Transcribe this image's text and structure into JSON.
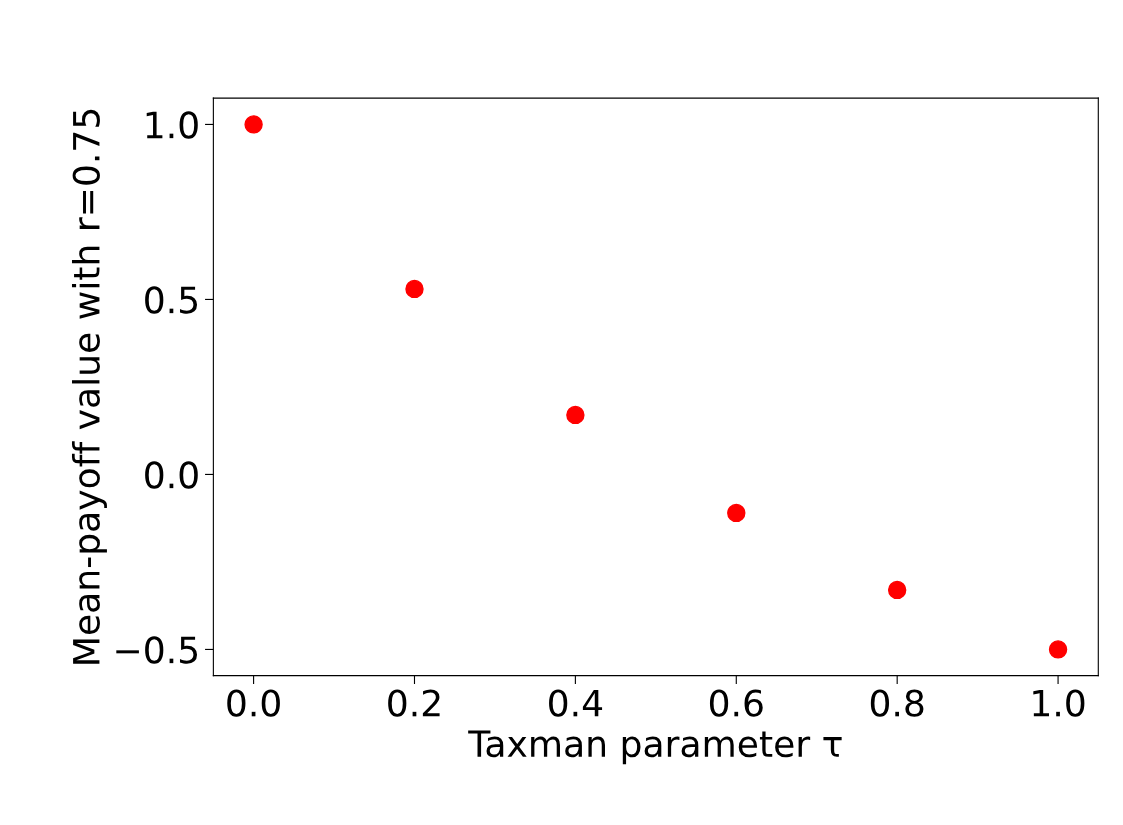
{
  "chart_data": {
    "type": "scatter",
    "xlabel": "Taxman parameter τ",
    "ylabel": "Mean-payoff value with r=0.75",
    "x": [
      0.0,
      0.2,
      0.4,
      0.6,
      0.8,
      1.0
    ],
    "series": [
      {
        "color": "#ff0000",
        "values": [
          1.0,
          0.53,
          0.17,
          -0.11,
          -0.33,
          -0.5
        ]
      }
    ],
    "marker": "circle",
    "grid": false,
    "xlim": [
      -0.05,
      1.05
    ],
    "ylim": [
      -0.575,
      1.075
    ],
    "xticks": [
      {
        "value": 0.0,
        "label": "0.0"
      },
      0.2,
      0.4,
      0.6,
      0.8,
      {
        "value": 1.0,
        "label": "1.0"
      }
    ],
    "yticks": [
      {
        "value": -0.5,
        "label": "−0.5"
      },
      {
        "value": 0.0,
        "label": "0.0"
      },
      0.5,
      {
        "value": 1.0,
        "label": "1.0"
      }
    ]
  }
}
